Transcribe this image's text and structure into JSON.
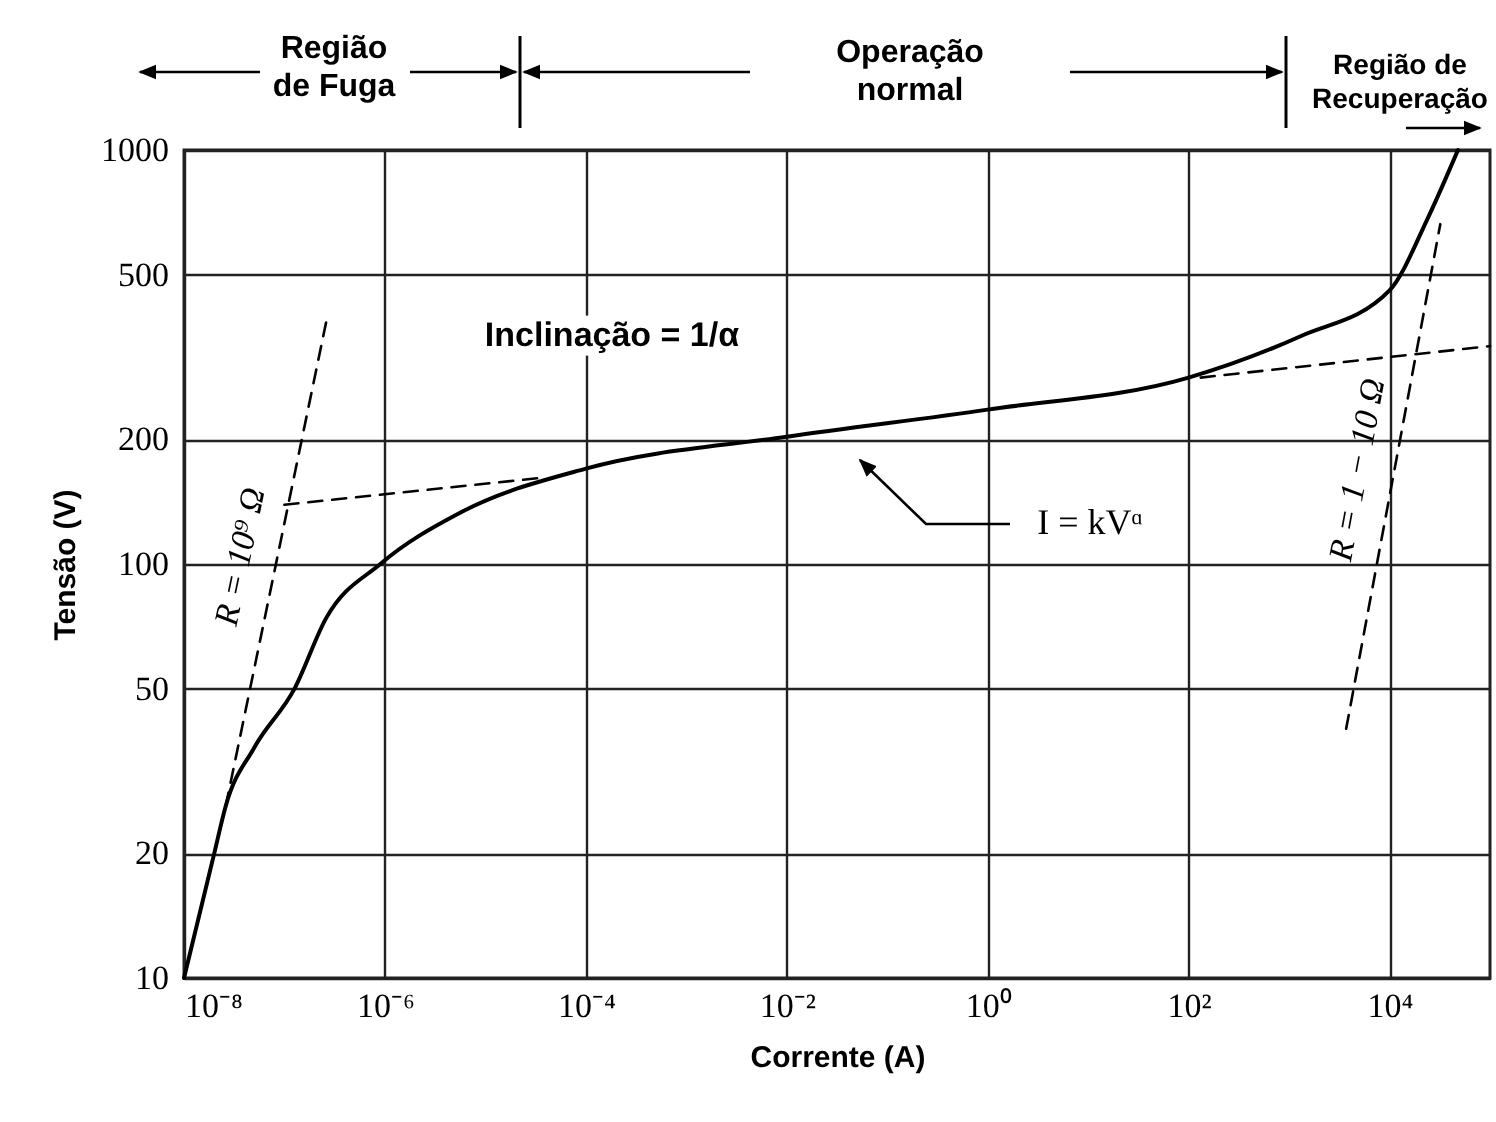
{
  "chart_data": {
    "type": "line",
    "xlabel": "Corrente (A)",
    "ylabel": "Tensão (V)",
    "log": "xy",
    "grid": true,
    "xlim": [
      1e-08,
      100000.0
    ],
    "xticks": [
      {
        "value": 1e-08,
        "label": "10⁻⁸"
      },
      {
        "value": 1e-06,
        "label": "10⁻⁶"
      },
      {
        "value": 0.0001,
        "label": "10⁻⁴"
      },
      {
        "value": 0.01,
        "label": "10⁻²"
      },
      {
        "value": 1,
        "label": "10⁰"
      },
      {
        "value": 100,
        "label": "10²"
      },
      {
        "value": 10000,
        "label": "10⁴"
      }
    ],
    "ylim": [
      10,
      1000
    ],
    "yticks": [
      10,
      20,
      50,
      100,
      200,
      500,
      1000
    ],
    "series": [
      {
        "color": "#000000",
        "line_style": "solid",
        "x": [
          1e-08,
          2e-08,
          2.6e-08,
          5e-08,
          1.26e-07,
          2.6e-07,
          9e-07,
          5.6e-06,
          0.0001,
          0.01,
          1,
          100,
          1300,
          10000,
          24000,
          48000
        ],
        "values": [
          10,
          20,
          26,
          36,
          50,
          74,
          100,
          133,
          170,
          203,
          236,
          282,
          355,
          458,
          684,
          1000
        ]
      },
      {
        "name": "R = 10⁹ Ω",
        "color": "#000000",
        "line_style": "dashed",
        "x": [
          2.6e-08,
          2.6e-07
        ],
        "values": [
          26,
          384
        ]
      },
      {
        "color": "#000000",
        "line_style": "dashed",
        "x": [
          1e-07,
          4.1e-05
        ],
        "values": [
          139,
          162
        ]
      },
      {
        "color": "#000000",
        "line_style": "dashed",
        "x": [
          132,
          100000
        ],
        "values": [
          282,
          336
        ]
      },
      {
        "name": "R = 1 − 10 Ω",
        "color": "#000000",
        "line_style": "dashed",
        "x": [
          3700,
          32000
        ],
        "values": [
          40,
          662
        ]
      }
    ],
    "annotations": [
      "Região de Fuga",
      "Operação normal",
      "Região de Recuperação",
      "Inclinação = 1/α",
      "I = kVᵅ"
    ]
  }
}
